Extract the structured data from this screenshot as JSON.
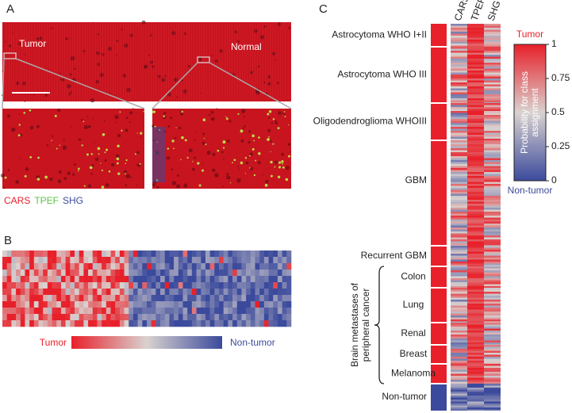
{
  "panels": {
    "A": {
      "label": "A",
      "image_labels": [
        "Tumor",
        "Normal"
      ],
      "legend": [
        "CARS",
        "TPEF",
        "SHG"
      ]
    },
    "B": {
      "label": "B",
      "scale_labels": [
        "Tumor",
        "Non-tumor"
      ]
    },
    "C": {
      "label": "C",
      "columns": [
        "CARS",
        "TPEF",
        "SHG"
      ],
      "classes": [
        "Astrocytoma WHO I+II",
        "Astrocytoma WHO III",
        "Oligodendroglioma WHOIII",
        "GBM",
        "Recurrent GBM",
        "Colon",
        "Lung",
        "Renal",
        "Breast",
        "Melanoma",
        "Non-tumor"
      ],
      "group_label": [
        "Brain metastases of",
        "peripheral cancer"
      ],
      "colorbar": {
        "title": [
          "Probability for class",
          "assignment"
        ],
        "top_label": "Tumor",
        "bottom_label": "Non-tumor",
        "ticks": [
          0,
          0.25,
          0.5,
          0.75,
          1
        ]
      }
    }
  }
}
